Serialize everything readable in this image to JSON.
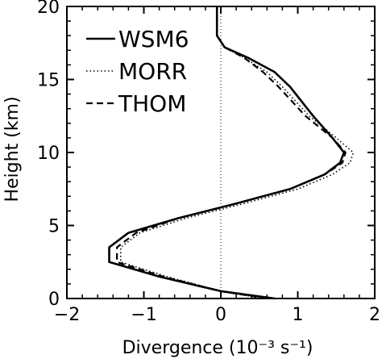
{
  "chart_data": {
    "type": "line",
    "title": "",
    "xlabel": "Divergence (10⁻³ s⁻¹)",
    "ylabel": "Height (km)",
    "xlim": [
      -2,
      2
    ],
    "ylim": [
      0,
      20
    ],
    "xticks": [
      -2,
      -1,
      0,
      1,
      2
    ],
    "yticks": [
      0,
      5,
      10,
      15,
      20
    ],
    "xtick_labels": [
      "−2",
      "−1",
      "0",
      "1",
      "2"
    ],
    "ytick_labels": [
      "0",
      "5",
      "10",
      "15",
      "20"
    ],
    "zero_line": {
      "x": 0,
      "style": "dotted"
    },
    "legend": {
      "position": "top-left"
    },
    "series": [
      {
        "name": "WSM6",
        "style": "solid",
        "color": "#000000",
        "x": [
          0.7,
          0.0,
          -0.8,
          -1.45,
          -1.45,
          -1.2,
          -0.55,
          0.2,
          0.9,
          1.35,
          1.55,
          1.6,
          1.45,
          1.2,
          0.9,
          0.7,
          0.35,
          0.05,
          -0.05,
          -0.05,
          -0.05
        ],
        "y": [
          0.0,
          0.5,
          1.5,
          2.5,
          3.5,
          4.5,
          5.5,
          6.5,
          7.5,
          8.5,
          9.3,
          10.0,
          11.0,
          12.5,
          14.5,
          15.5,
          16.5,
          17.2,
          18.0,
          19.0,
          20.0
        ]
      },
      {
        "name": "MORR",
        "style": "dotted",
        "color": "#000000",
        "x": [
          0.55,
          0.0,
          -0.7,
          -1.3,
          -1.3,
          -1.05,
          -0.45,
          0.3,
          1.0,
          1.45,
          1.68,
          1.72,
          1.5,
          1.15,
          0.8,
          0.6,
          0.3,
          0.05,
          -0.05,
          -0.05,
          -0.05
        ],
        "y": [
          0.0,
          0.5,
          1.5,
          2.5,
          3.5,
          4.5,
          5.5,
          6.5,
          7.5,
          8.5,
          9.3,
          10.0,
          11.0,
          12.5,
          14.5,
          15.5,
          16.5,
          17.2,
          18.0,
          19.0,
          20.0
        ]
      },
      {
        "name": "THOM",
        "style": "dashed",
        "color": "#000000",
        "x": [
          0.6,
          0.0,
          -0.75,
          -1.35,
          -1.35,
          -1.1,
          -0.55,
          0.2,
          0.9,
          1.35,
          1.58,
          1.62,
          1.45,
          1.1,
          0.75,
          0.55,
          0.3,
          0.05,
          -0.05,
          -0.05,
          -0.05
        ],
        "y": [
          0.0,
          0.5,
          1.5,
          2.5,
          3.5,
          4.5,
          5.5,
          6.5,
          7.5,
          8.5,
          9.3,
          10.0,
          11.0,
          12.5,
          14.5,
          15.5,
          16.5,
          17.2,
          18.0,
          19.0,
          20.0
        ]
      }
    ]
  },
  "colors": {
    "background": "#ffffff",
    "ink": "#000000"
  }
}
